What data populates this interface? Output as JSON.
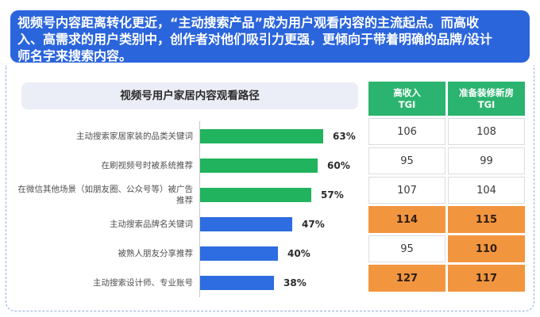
{
  "banner": {
    "lines": [
      "视频号内容距离转化更近，“主动搜索产品”成为用户观看内容的主流起点。而高收",
      "入、高需求的用户类别中，创作者对他们吸引力更强，更倾向于带着明确的品牌/设计",
      "师名字来搜索内容。"
    ],
    "full_text": "视频号内容距离转化更近，“主动搜索产品”成为用户观看内容的主流起点。而高收入、高需求的用户类别中，创作者对他们吸引力更强，更倾向于带着明确的品牌/设计师名字来搜索内容。"
  },
  "chart": {
    "title": "视频号用户家居内容观看路径"
  },
  "chart_data": {
    "type": "bar",
    "orientation": "horizontal",
    "title": "视频号用户家居内容观看路径",
    "categories": [
      "主动搜索家居家装的品类关键词",
      "在刷视频号时被系统推荐",
      "在微信其他场景（如朋友圈、公众号等）被广告推荐",
      "主动搜索品牌名关键词",
      "被熟人朋友分享推荐",
      "主动搜索设计师、专业账号"
    ],
    "values": [
      63,
      60,
      57,
      47,
      40,
      38
    ],
    "value_labels": [
      "63%",
      "60%",
      "57%",
      "47%",
      "40%",
      "38%"
    ],
    "bar_colors": [
      "#21b35d",
      "#21b35d",
      "#21b35d",
      "#2e6ce1",
      "#2e6ce1",
      "#2e6ce1"
    ],
    "xlabel": "",
    "ylabel": "",
    "xlim": [
      0,
      70
    ],
    "grid": false,
    "legend": "none"
  },
  "table": {
    "headers": [
      {
        "line1": "高收入",
        "line2": "TGI"
      },
      {
        "line1": "准备装修新房",
        "line2": "TGI"
      }
    ],
    "rows": [
      {
        "cells": [
          {
            "value": "106",
            "highlight": false
          },
          {
            "value": "108",
            "highlight": false
          }
        ]
      },
      {
        "cells": [
          {
            "value": "95",
            "highlight": false
          },
          {
            "value": "99",
            "highlight": false
          }
        ]
      },
      {
        "cells": [
          {
            "value": "107",
            "highlight": false
          },
          {
            "value": "104",
            "highlight": false
          }
        ]
      },
      {
        "cells": [
          {
            "value": "114",
            "highlight": true
          },
          {
            "value": "115",
            "highlight": true
          }
        ]
      },
      {
        "cells": [
          {
            "value": "95",
            "highlight": false
          },
          {
            "value": "110",
            "highlight": true
          }
        ]
      },
      {
        "cells": [
          {
            "value": "127",
            "highlight": true
          },
          {
            "value": "117",
            "highlight": true
          }
        ]
      }
    ]
  },
  "colors": {
    "banner_bg": "#2b65dc",
    "card_dashed_border": "#93acdd",
    "chart_title_bg": "#ebedf7",
    "green_bar": "#21b35d",
    "blue_bar": "#2e6ce1",
    "table_header_bg": "#2bb46f",
    "highlight_cell_bg": "#f2953f"
  }
}
